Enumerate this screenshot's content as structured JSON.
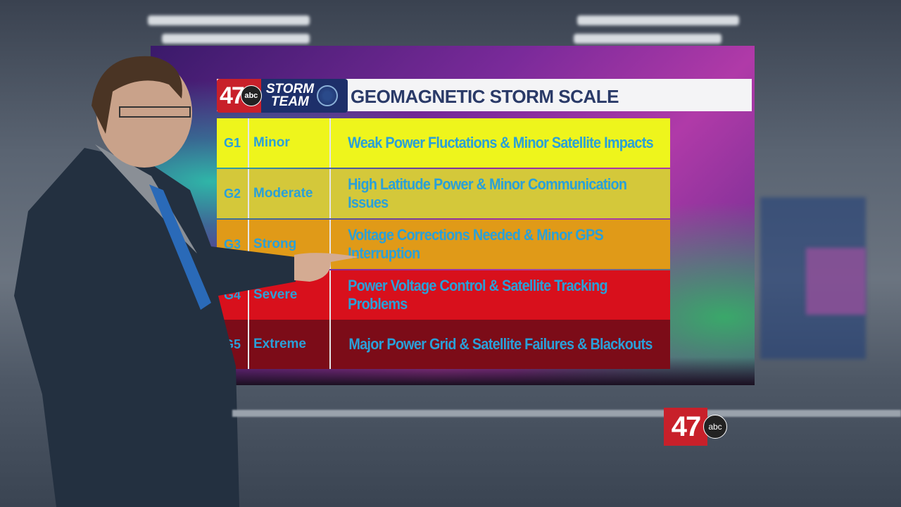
{
  "header": {
    "station_number": "47",
    "network": "abc",
    "team_line1": "STORM",
    "team_line2": "TEAM",
    "title": "GEOMAGNETIC STORM SCALE"
  },
  "scale": [
    {
      "level": "G1",
      "name": "Minor",
      "effects": "Weak Power Fluctations & Minor Satellite Impacts",
      "color": "#eef51c"
    },
    {
      "level": "G2",
      "name": "Moderate",
      "effects": "High Latitude Power & Minor Communication Issues",
      "color": "#d4c83a"
    },
    {
      "level": "G3",
      "name": "Strong",
      "effects": "Voltage Corrections Needed & Minor GPS Interruption",
      "color": "#e09a18"
    },
    {
      "level": "G4",
      "name": "Severe",
      "effects": "Power Voltage Control & Satellite Tracking Problems",
      "color": "#d8101c"
    },
    {
      "level": "G5",
      "name": "Extreme",
      "effects": "Major Power Grid & Satellite Failures & Blackouts",
      "color": "#7c0c18"
    }
  ],
  "text_color": "#2aa0d8",
  "bug": {
    "number": "47",
    "network": "abc"
  }
}
